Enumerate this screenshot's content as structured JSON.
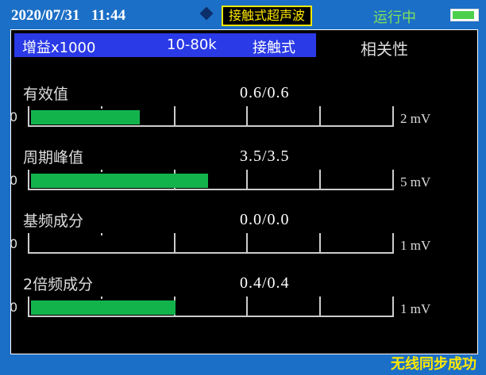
{
  "status": {
    "date": "2020/07/31",
    "time": "11:44",
    "mode": "接触式超声波",
    "run_state": "运行中",
    "battery_level": 0.9,
    "battery_icon": "battery-icon",
    "diamond_icon": "diamond-icon"
  },
  "header": {
    "gain": "增益x1000",
    "band": "10-80k",
    "method": "接触式",
    "correlation": "相关性"
  },
  "rows": [
    {
      "label": "有效值",
      "value": "0.6/0.6",
      "zero": "0",
      "unit": "2 mV",
      "fill": 0.3
    },
    {
      "label": "周期峰值",
      "value": "3.5/3.5",
      "zero": "0",
      "unit": "5 mV",
      "fill": 0.49
    },
    {
      "label": "基频成分",
      "value": "0.0/0.0",
      "zero": "0",
      "unit": "1 mV",
      "fill": 0
    },
    {
      "label": "2倍频成分",
      "value": "0.4/0.4",
      "zero": "0",
      "unit": "1 mV",
      "fill": 0.4
    }
  ],
  "footer": {
    "sync": "无线同步成功"
  },
  "colors": {
    "background": "#1c6fc6",
    "bar": "#13b34c",
    "mode_border": "#ffe800",
    "band": "#2a3ae6"
  }
}
